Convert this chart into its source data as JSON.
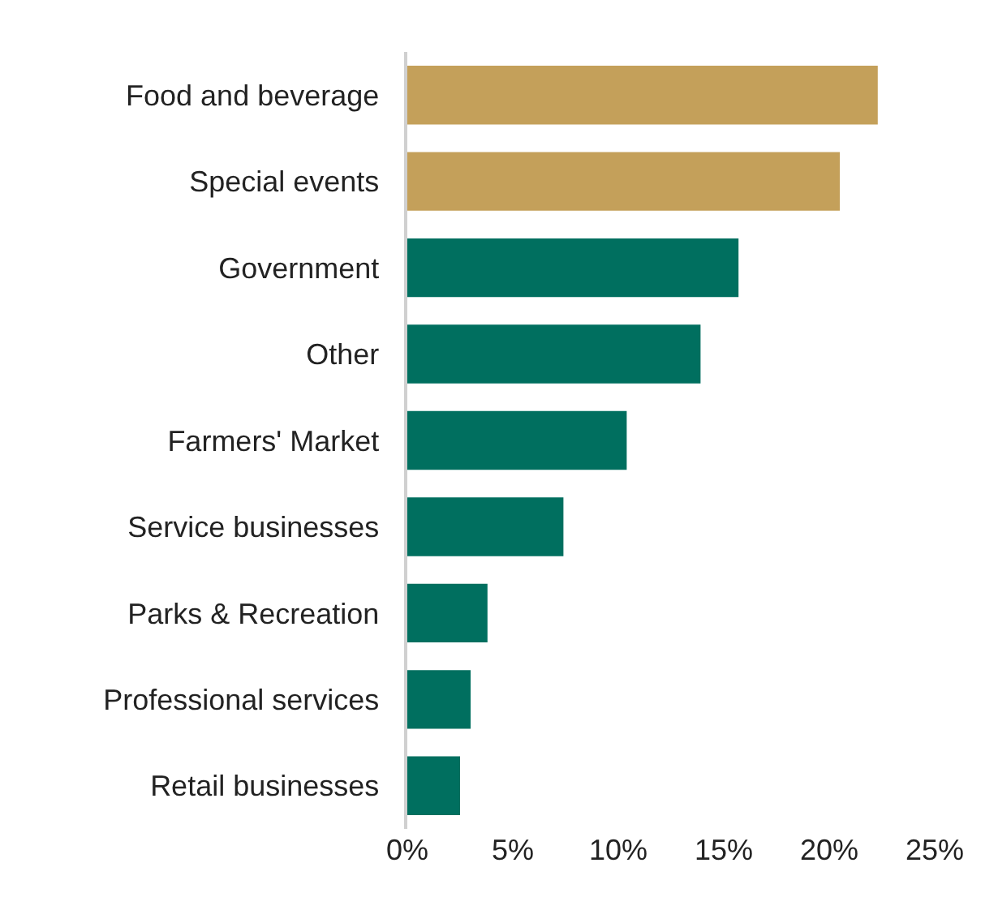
{
  "chart_data": {
    "type": "bar",
    "orientation": "horizontal",
    "categories": [
      "Food and beverage",
      "Special events",
      "Government",
      "Other",
      "Farmers' Market",
      "Service businesses",
      "Parks & Recreation",
      "Professional services",
      "Retail businesses"
    ],
    "values": [
      22.3,
      20.5,
      15.7,
      13.9,
      10.4,
      7.4,
      3.8,
      3.0,
      2.5
    ],
    "colors": [
      "#c4a05a",
      "#c4a05a",
      "#006f5f",
      "#006f5f",
      "#006f5f",
      "#006f5f",
      "#006f5f",
      "#006f5f",
      "#006f5f"
    ],
    "xlim": [
      0,
      25
    ],
    "xticks": [
      {
        "value": 0,
        "label": "0%"
      },
      {
        "value": 5,
        "label": "5%"
      },
      {
        "value": 10,
        "label": "10%"
      },
      {
        "value": 15,
        "label": "15%"
      },
      {
        "value": 20,
        "label": "20%"
      },
      {
        "value": 25,
        "label": "25%"
      }
    ],
    "legend": false
  }
}
